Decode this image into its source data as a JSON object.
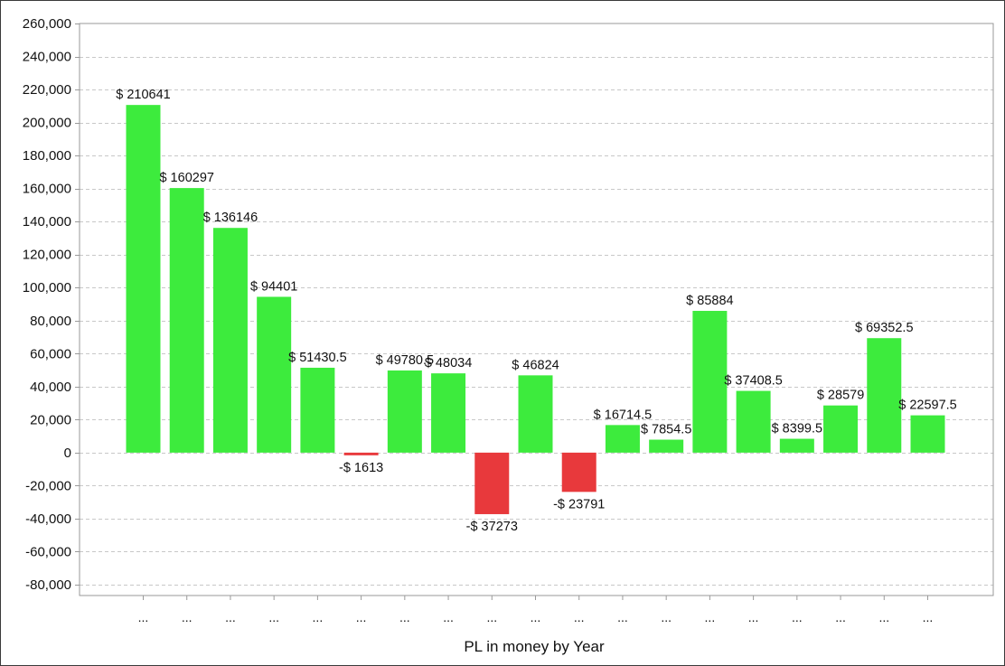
{
  "chart_data": {
    "type": "bar",
    "xlabel": "PL in money by Year",
    "ylabel": "",
    "ylim": [
      -80000,
      260000
    ],
    "ytick_step": 20000,
    "yticks": [
      "260,000",
      "240,000",
      "220,000",
      "200,000",
      "180,000",
      "160,000",
      "140,000",
      "120,000",
      "100,000",
      "80,000",
      "60,000",
      "40,000",
      "20,000",
      "0",
      "-20,000",
      "-40,000",
      "-60,000",
      "-80,000"
    ],
    "grid": true,
    "legend": "none",
    "categories": [
      "...",
      "...",
      "...",
      "...",
      "...",
      "...",
      "...",
      "...",
      "...",
      "...",
      "...",
      "...",
      "...",
      "...",
      "...",
      "...",
      "...",
      "...",
      "..."
    ],
    "values": [
      210641,
      160297,
      136146,
      94401,
      51430.5,
      -1613,
      49780.5,
      48034,
      -37273,
      46824,
      -23791,
      16714.5,
      7854.5,
      85884,
      37408.5,
      8399.5,
      28579,
      69352.5,
      22597.5
    ],
    "data_labels": [
      "$ 210641",
      "$ 160297",
      "$ 136146",
      "$ 94401",
      "$ 51430.5",
      "-$ 1613",
      "$ 49780.5",
      "$ 48034",
      "-$ 37273",
      "$ 46824",
      "-$ 23791",
      "$ 16714.5",
      "$ 7854.5",
      "$ 85884",
      "$ 37408.5",
      "$ 8399.5",
      "$ 28579",
      "$ 69352.5",
      "$ 22597.5"
    ],
    "colors": {
      "positive": "#3deb3d",
      "negative": "#e8393c",
      "grid": "#c8c8c8",
      "axis": "#9a9a9a"
    }
  }
}
